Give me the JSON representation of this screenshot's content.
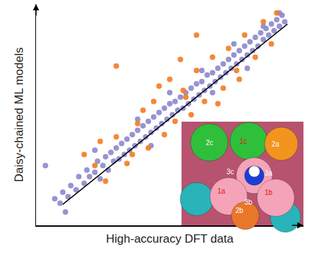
{
  "chart_data": {
    "type": "scatter",
    "xlabel": "High-accuracy DFT data",
    "ylabel": "Daisy-chained ML models",
    "xlim": [
      0,
      10
    ],
    "ylim": [
      0,
      10
    ],
    "xticks": [],
    "yticks": [],
    "tick_labels": false,
    "grid": false,
    "series": [
      {
        "type": "scatter",
        "color": "#8c88cc",
        "marker": "circle",
        "x": [
          0.35,
          0.7,
          0.9,
          1.0,
          1.2,
          1.3,
          1.5,
          1.6,
          1.8,
          1.9,
          2.0,
          2.2,
          2.3,
          2.4,
          2.5,
          2.6,
          2.7,
          2.8,
          2.9,
          3.0,
          3.1,
          3.2,
          3.3,
          3.4,
          3.5,
          3.6,
          3.7,
          3.8,
          3.9,
          4.0,
          4.1,
          4.2,
          4.3,
          4.4,
          4.5,
          4.6,
          4.7,
          4.8,
          4.9,
          5.0,
          5.1,
          5.2,
          5.3,
          5.4,
          5.5,
          5.6,
          5.7,
          5.8,
          5.9,
          6.0,
          6.1,
          6.2,
          6.3,
          6.4,
          6.5,
          6.6,
          6.7,
          6.8,
          6.9,
          7.0,
          7.1,
          7.2,
          7.3,
          7.4,
          7.5,
          7.6,
          7.7,
          7.8,
          7.9,
          8.0,
          8.1,
          8.2,
          8.3,
          8.4,
          8.5,
          8.6,
          8.7,
          8.8,
          8.9,
          9.0,
          9.1,
          9.2,
          9.3,
          9.1,
          8.5,
          7.4,
          6.2,
          5.0,
          3.8,
          2.2,
          1.1,
          4.3,
          6.6,
          7.9
        ],
        "y": [
          2.7,
          1.2,
          1.0,
          1.5,
          1.3,
          1.8,
          1.6,
          2.2,
          1.9,
          2.5,
          2.2,
          2.4,
          2.9,
          2.1,
          2.7,
          3.1,
          2.5,
          3.3,
          2.9,
          3.5,
          3.0,
          3.7,
          3.2,
          3.9,
          3.4,
          4.1,
          3.6,
          4.3,
          3.8,
          4.5,
          4.0,
          4.7,
          4.2,
          4.9,
          4.4,
          5.1,
          4.6,
          5.3,
          4.8,
          5.5,
          5.0,
          5.6,
          5.2,
          5.8,
          5.3,
          6.0,
          5.5,
          6.2,
          5.7,
          6.4,
          5.9,
          6.5,
          6.1,
          6.8,
          6.3,
          6.9,
          6.5,
          7.1,
          6.7,
          7.3,
          6.9,
          7.5,
          7.1,
          7.7,
          7.3,
          7.9,
          7.5,
          8.1,
          7.7,
          8.3,
          7.9,
          8.5,
          8.1,
          8.7,
          8.4,
          8.9,
          8.6,
          9.1,
          8.8,
          9.3,
          9.0,
          9.5,
          9.2,
          9.6,
          9.0,
          8.2,
          7.0,
          6.0,
          4.8,
          3.4,
          0.6,
          3.6,
          6.0,
          7.1
        ]
      },
      {
        "type": "scatter",
        "color": "#f47b20",
        "marker": "circle",
        "x": [
          1.8,
          2.2,
          2.6,
          3.0,
          3.4,
          3.8,
          4.2,
          4.4,
          4.8,
          5.0,
          5.2,
          5.5,
          5.8,
          6.0,
          6.3,
          6.6,
          7.0,
          7.2,
          7.5,
          7.8,
          8.2,
          8.5,
          8.8,
          9.0,
          3.0,
          5.4,
          6.0,
          4.6,
          6.8,
          2.4,
          3.6,
          4.0,
          5.6,
          7.6
        ],
        "y": [
          3.2,
          2.7,
          2.0,
          4.0,
          2.8,
          4.6,
          3.5,
          5.6,
          4.1,
          6.6,
          4.7,
          6.1,
          5.0,
          7.0,
          5.6,
          7.6,
          6.2,
          8.0,
          7.0,
          8.6,
          7.6,
          9.2,
          8.2,
          9.6,
          7.2,
          7.5,
          8.6,
          6.3,
          5.5,
          3.8,
          3.2,
          5.2,
          5.8,
          6.6
        ]
      },
      {
        "type": "line",
        "color": "#000000",
        "line_style": "solid",
        "x": [
          1.0,
          9.4
        ],
        "y": [
          0.95,
          9.1
        ]
      }
    ],
    "inset": {
      "labels": [
        "2c",
        "1c",
        "2a",
        "3c",
        "3a",
        "1a",
        "1b",
        "3b",
        "2b"
      ]
    }
  }
}
